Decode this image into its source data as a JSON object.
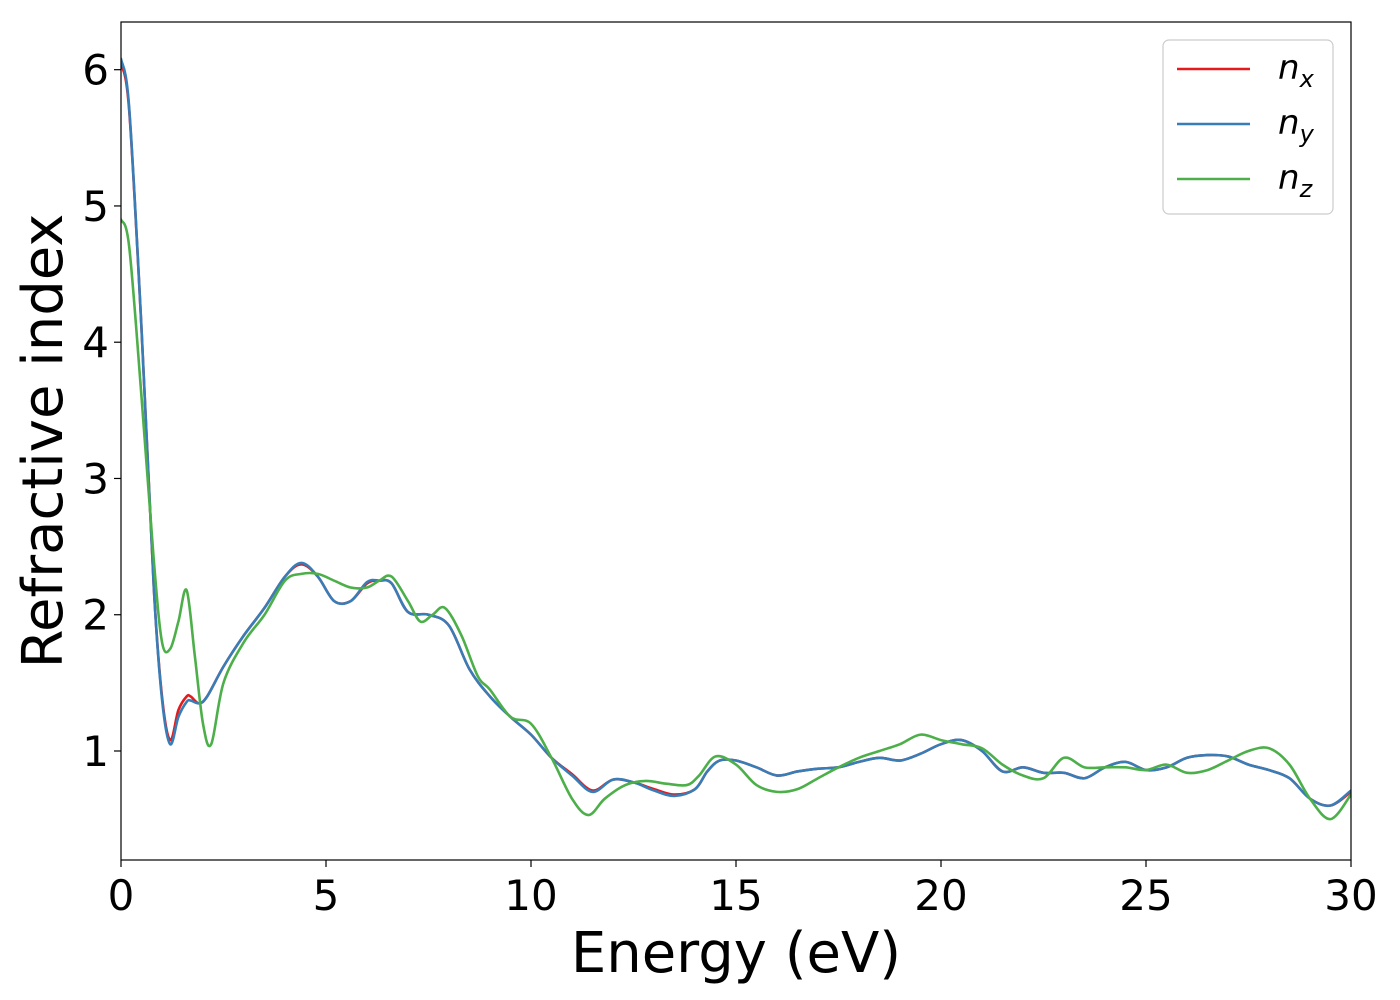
{
  "chart_data": {
    "type": "line",
    "title": "",
    "xlabel": "Energy (eV)",
    "ylabel": "Refractive index",
    "xlim": [
      0,
      30
    ],
    "ylim": [
      0.2,
      6.35
    ],
    "xticks": [
      0,
      5,
      10,
      15,
      20,
      25,
      30
    ],
    "yticks": [
      1,
      2,
      3,
      4,
      5,
      6
    ],
    "grid": false,
    "legend_position": "top-right",
    "series": [
      {
        "name": "n_x",
        "legend_base": "n",
        "legend_sub": "x",
        "color": "#e41a1c",
        "x": [
          0.0,
          0.2,
          0.5,
          0.8,
          1.0,
          1.2,
          1.4,
          1.6,
          1.7,
          1.9,
          2.1,
          2.5,
          3.0,
          3.5,
          4.0,
          4.4,
          4.8,
          5.2,
          5.6,
          6.0,
          6.3,
          6.6,
          7.0,
          7.5,
          8.0,
          8.5,
          9.0,
          9.5,
          10.0,
          10.5,
          11.0,
          11.5,
          12.0,
          12.5,
          13.0,
          13.5,
          14.0,
          14.3,
          14.6,
          15.0,
          15.5,
          16.0,
          16.5,
          17.0,
          17.5,
          18.0,
          18.5,
          19.0,
          19.5,
          20.0,
          20.5,
          21.0,
          21.5,
          22.0,
          22.5,
          23.0,
          23.5,
          24.0,
          24.5,
          25.0,
          25.5,
          26.0,
          26.5,
          27.0,
          27.5,
          28.0,
          28.5,
          29.0,
          29.5,
          30.0
        ],
        "y": [
          6.05,
          5.7,
          4.1,
          2.2,
          1.4,
          1.08,
          1.3,
          1.4,
          1.4,
          1.35,
          1.4,
          1.62,
          1.85,
          2.05,
          2.28,
          2.37,
          2.28,
          2.1,
          2.1,
          2.23,
          2.25,
          2.23,
          2.02,
          2.0,
          1.92,
          1.6,
          1.4,
          1.25,
          1.12,
          0.95,
          0.83,
          0.71,
          0.79,
          0.77,
          0.72,
          0.68,
          0.72,
          0.85,
          0.93,
          0.93,
          0.88,
          0.82,
          0.85,
          0.87,
          0.88,
          0.92,
          0.95,
          0.93,
          0.98,
          1.05,
          1.08,
          1.0,
          0.85,
          0.88,
          0.84,
          0.84,
          0.8,
          0.88,
          0.92,
          0.86,
          0.88,
          0.95,
          0.97,
          0.96,
          0.9,
          0.86,
          0.8,
          0.65,
          0.6,
          0.7
        ]
      },
      {
        "name": "n_y",
        "legend_base": "n",
        "legend_sub": "y",
        "color": "#377eb8",
        "x": [
          0.0,
          0.2,
          0.5,
          0.8,
          1.0,
          1.2,
          1.4,
          1.6,
          1.7,
          1.9,
          2.1,
          2.5,
          3.0,
          3.5,
          4.0,
          4.4,
          4.8,
          5.2,
          5.6,
          6.0,
          6.3,
          6.6,
          7.0,
          7.5,
          8.0,
          8.5,
          9.0,
          9.5,
          10.0,
          10.5,
          11.0,
          11.5,
          12.0,
          12.5,
          13.0,
          13.5,
          14.0,
          14.3,
          14.6,
          15.0,
          15.5,
          16.0,
          16.5,
          17.0,
          17.5,
          18.0,
          18.5,
          19.0,
          19.5,
          20.0,
          20.5,
          21.0,
          21.5,
          22.0,
          22.5,
          23.0,
          23.5,
          24.0,
          24.5,
          25.0,
          25.5,
          26.0,
          26.5,
          27.0,
          27.5,
          28.0,
          28.5,
          29.0,
          29.5,
          30.0
        ],
        "y": [
          6.08,
          5.72,
          4.1,
          2.2,
          1.38,
          1.05,
          1.25,
          1.36,
          1.37,
          1.35,
          1.4,
          1.62,
          1.85,
          2.05,
          2.28,
          2.38,
          2.28,
          2.1,
          2.1,
          2.24,
          2.25,
          2.23,
          2.02,
          2.0,
          1.92,
          1.6,
          1.4,
          1.25,
          1.12,
          0.95,
          0.82,
          0.7,
          0.79,
          0.77,
          0.71,
          0.67,
          0.72,
          0.85,
          0.93,
          0.93,
          0.88,
          0.82,
          0.85,
          0.87,
          0.88,
          0.92,
          0.95,
          0.93,
          0.98,
          1.05,
          1.08,
          1.0,
          0.85,
          0.88,
          0.84,
          0.84,
          0.8,
          0.88,
          0.92,
          0.86,
          0.88,
          0.95,
          0.97,
          0.96,
          0.9,
          0.86,
          0.8,
          0.65,
          0.6,
          0.71
        ]
      },
      {
        "name": "n_z",
        "legend_base": "n",
        "legend_sub": "z",
        "color": "#4daf4a",
        "x": [
          0.0,
          0.2,
          0.5,
          0.8,
          1.0,
          1.2,
          1.4,
          1.6,
          1.8,
          2.0,
          2.2,
          2.5,
          3.0,
          3.5,
          4.0,
          4.4,
          4.8,
          5.2,
          5.6,
          6.0,
          6.3,
          6.6,
          7.0,
          7.3,
          7.6,
          7.9,
          8.3,
          8.7,
          9.0,
          9.5,
          10.0,
          10.5,
          11.0,
          11.4,
          11.8,
          12.3,
          12.8,
          13.3,
          13.8,
          14.1,
          14.5,
          15.0,
          15.5,
          16.0,
          16.5,
          17.0,
          17.5,
          18.0,
          18.5,
          19.0,
          19.5,
          20.0,
          20.5,
          21.0,
          21.5,
          22.0,
          22.5,
          23.0,
          23.5,
          24.0,
          24.5,
          25.0,
          25.5,
          26.0,
          26.5,
          27.0,
          27.5,
          28.0,
          28.5,
          29.0,
          29.5,
          30.0
        ],
        "y": [
          4.9,
          4.7,
          3.6,
          2.4,
          1.8,
          1.75,
          1.95,
          2.18,
          1.7,
          1.2,
          1.05,
          1.5,
          1.8,
          2.0,
          2.25,
          2.3,
          2.3,
          2.25,
          2.2,
          2.2,
          2.25,
          2.28,
          2.1,
          1.95,
          2.0,
          2.05,
          1.85,
          1.55,
          1.45,
          1.25,
          1.2,
          0.95,
          0.65,
          0.53,
          0.65,
          0.75,
          0.78,
          0.76,
          0.75,
          0.82,
          0.96,
          0.9,
          0.75,
          0.7,
          0.72,
          0.8,
          0.88,
          0.95,
          1.0,
          1.05,
          1.12,
          1.08,
          1.05,
          1.02,
          0.9,
          0.82,
          0.8,
          0.95,
          0.88,
          0.88,
          0.88,
          0.86,
          0.9,
          0.84,
          0.86,
          0.93,
          1.0,
          1.02,
          0.9,
          0.65,
          0.5,
          0.68
        ]
      }
    ]
  }
}
